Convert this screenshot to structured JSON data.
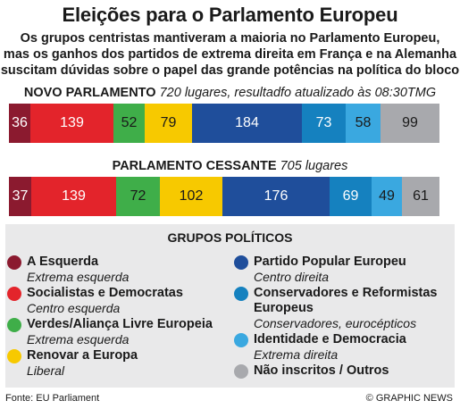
{
  "header": {
    "title": "Eleições para o Parlamento Europeu",
    "subtitle_lines": [
      "Os grupos centristas mantiveram a maioria no Parlamento Europeu,",
      "mas os ganhos dos partidos de extrema direita em França e na Alemanha",
      "suscitam dúvidas sobre o papel das grande potências na política do bloco"
    ]
  },
  "new_parliament": {
    "label": "NOVO PARLAMENTO",
    "note": "720 lugares, resultadfo atualizado às 08:30TMG"
  },
  "outgoing_parliament": {
    "label": "PARLAMENTO CESSANTE",
    "note": "705 lugares"
  },
  "chart_data": [
    {
      "type": "bar",
      "title": "NOVO PARLAMENTO",
      "categories": [
        "A Esquerda",
        "Socialistas e Democratas",
        "Verdes/Aliança Livre Europeia",
        "Renovar a Europa",
        "Partido Popular Europeu",
        "Conservadores e Reformistas Europeus",
        "Identidade e Democracia",
        "Não inscritos / Outros"
      ],
      "values": [
        36,
        139,
        52,
        79,
        184,
        73,
        58,
        99
      ]
    },
    {
      "type": "bar",
      "title": "PARLAMENTO CESSANTE",
      "categories": [
        "A Esquerda",
        "Socialistas e Democratas",
        "Verdes/Aliança Livre Europeia",
        "Renovar a Europa",
        "Partido Popular Europeu",
        "Conservadores e Reformistas Europeus",
        "Identidade e Democracia",
        "Não inscritos / Outros"
      ],
      "values": [
        37,
        139,
        72,
        102,
        176,
        69,
        49,
        61
      ]
    }
  ],
  "segment_colors": [
    "#8b1a2f",
    "#e3242b",
    "#3fae49",
    "#f7c900",
    "#1f4e9b",
    "#1581bf",
    "#3aa8e0",
    "#a8a9ad"
  ],
  "segment_text_colors": [
    "#ffffff",
    "#ffffff",
    "#1a1a1a",
    "#1a1a1a",
    "#ffffff",
    "#ffffff",
    "#1a1a1a",
    "#1a1a1a"
  ],
  "legend": {
    "title": "GRUPOS POLÍTICOS",
    "left": [
      {
        "name": "A Esquerda",
        "desc": "Extrema esquerda",
        "color": "#8b1a2f"
      },
      {
        "name": "Socialistas e Democratas",
        "desc": "Centro esquerda",
        "color": "#e3242b"
      },
      {
        "name": "Verdes/Aliança Livre Europeia",
        "desc": "Extrema esquerda",
        "color": "#3fae49"
      },
      {
        "name": "Renovar a Europa",
        "desc": "Liberal",
        "color": "#f7c900"
      }
    ],
    "right": [
      {
        "name": "Partido Popular Europeu",
        "desc": "Centro direita",
        "color": "#1f4e9b"
      },
      {
        "name": "Conservadores e Reformistas Europeus",
        "desc": "Conservadores, eurocépticos",
        "color": "#1581bf"
      },
      {
        "name": "Identidade e Democracia",
        "desc": "Extrema direita",
        "color": "#3aa8e0"
      },
      {
        "name": "Não inscritos / Outros",
        "desc": "",
        "color": "#a8a9ad"
      }
    ]
  },
  "footer": {
    "source": "Fonte: EU Parliament",
    "credit": "© GRAPHIC NEWS"
  }
}
